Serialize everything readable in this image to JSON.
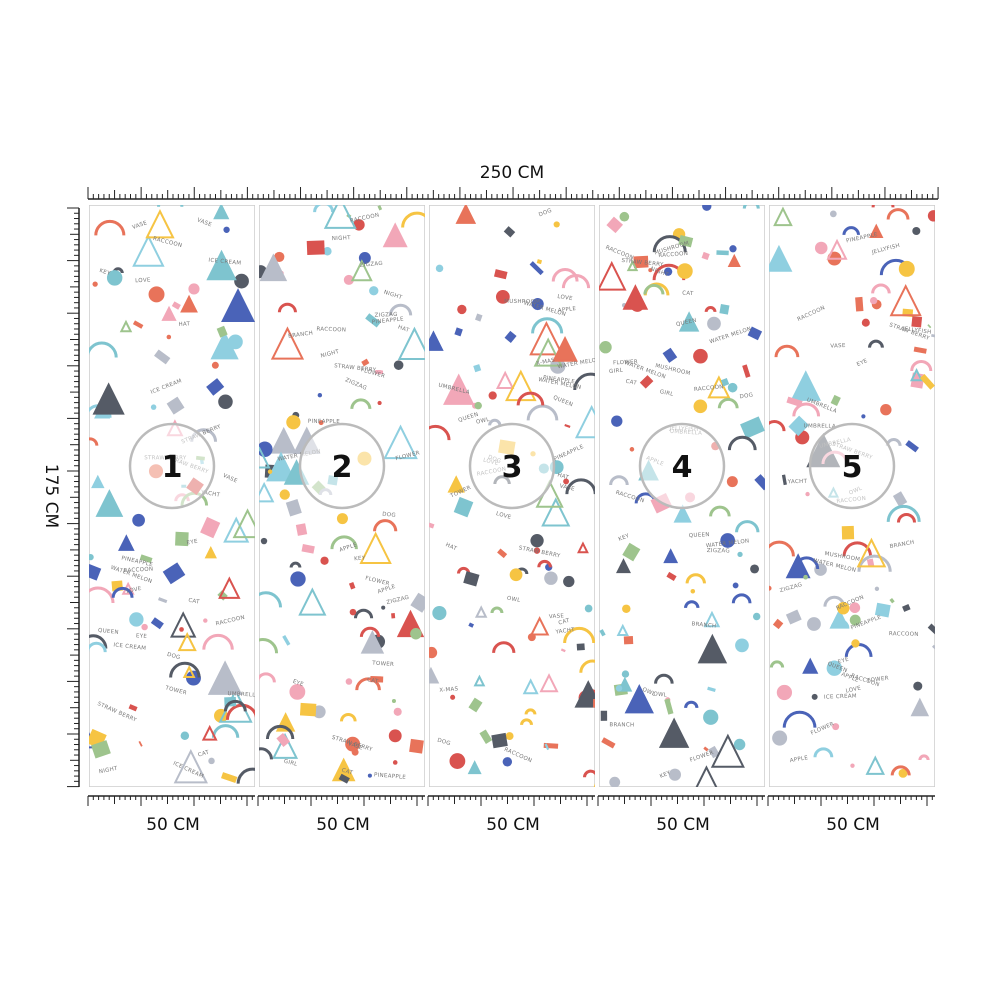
{
  "width_label": "250 CM",
  "height_label": "175 CM",
  "panels": [
    {
      "number": "1",
      "width_label": "50 CM"
    },
    {
      "number": "2",
      "width_label": "50 CM"
    },
    {
      "number": "3",
      "width_label": "50 CM"
    },
    {
      "number": "4",
      "width_label": "50 CM"
    },
    {
      "number": "5",
      "width_label": "50 CM"
    }
  ],
  "pattern_words": [
    "APPLE",
    "CAT",
    "GIRL",
    "BRANCH",
    "DOG",
    "LOVE",
    "HAT",
    "ICE CREAM",
    "KEY",
    "FLOWER",
    "MUSHROOM",
    "OWL",
    "NIGHT",
    "QUEEN",
    "RACCOON",
    "PINEAPPLE",
    "STRAW BERRY",
    "UMBRELLA",
    "TOWER",
    "WATER MELON",
    "X-MAS",
    "VASE",
    "YACHT",
    "ZIGZAG",
    "EYE",
    "JELLYFISH"
  ]
}
